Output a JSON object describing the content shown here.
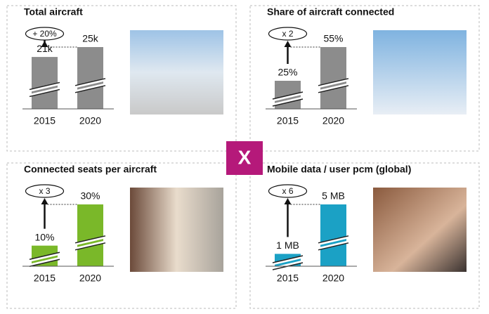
{
  "chart_data": [
    {
      "type": "bar",
      "title": "Total aircraft",
      "categories": [
        "2015",
        "2020"
      ],
      "values": [
        21000,
        25000
      ],
      "value_labels": [
        "21k",
        "25k"
      ],
      "annotation": "+ 20%",
      "color": "#8c8c8c"
    },
    {
      "type": "bar",
      "title": "Share of aircraft connected",
      "categories": [
        "2015",
        "2020"
      ],
      "values": [
        25,
        55
      ],
      "value_labels": [
        "25%",
        "55%"
      ],
      "annotation": "x 2",
      "color": "#8c8c8c"
    },
    {
      "type": "bar",
      "title": "Connected seats per aircraft",
      "categories": [
        "2015",
        "2020"
      ],
      "values": [
        10,
        30
      ],
      "value_labels": [
        "10%",
        "30%"
      ],
      "annotation": "x 3",
      "color": "#7ab829"
    },
    {
      "type": "bar",
      "title": "Mobile data / user pcm (global)",
      "categories": [
        "2015",
        "2020"
      ],
      "values": [
        1,
        5
      ],
      "value_labels": [
        "1 MB",
        "5 MB"
      ],
      "annotation": "x 6",
      "color": "#1ba1c5"
    }
  ],
  "operator": "X"
}
